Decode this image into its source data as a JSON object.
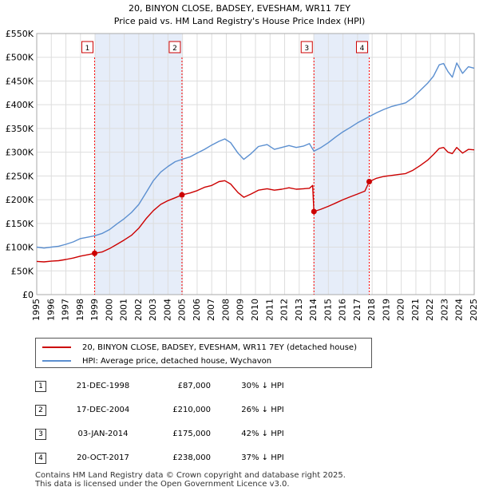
{
  "colors": {
    "property": "#cc0000",
    "hpi": "#5b8fd0",
    "shade": "#e6edf9",
    "grid": "#dddddd",
    "marker_line": "#ff0000"
  },
  "chart_data": {
    "type": "line",
    "title": "20, BINYON CLOSE, BADSEY, EVESHAM, WR11 7EY",
    "subtitle": "Price paid vs. HM Land Registry's House Price Index (HPI)",
    "xlim": [
      1995,
      2025
    ],
    "ylim": [
      0,
      550000
    ],
    "x_ticks": [
      1995,
      1996,
      1997,
      1998,
      1999,
      2000,
      2001,
      2002,
      2003,
      2004,
      2005,
      2006,
      2007,
      2008,
      2009,
      2010,
      2011,
      2012,
      2013,
      2014,
      2015,
      2016,
      2017,
      2018,
      2019,
      2020,
      2021,
      2022,
      2023,
      2024,
      2025
    ],
    "y_ticks": [
      {
        "value": 0,
        "label": "£0"
      },
      {
        "value": 50000,
        "label": "£50K"
      },
      {
        "value": 100000,
        "label": "£100K"
      },
      {
        "value": 150000,
        "label": "£150K"
      },
      {
        "value": 200000,
        "label": "£200K"
      },
      {
        "value": 250000,
        "label": "£250K"
      },
      {
        "value": 300000,
        "label": "£300K"
      },
      {
        "value": 350000,
        "label": "£350K"
      },
      {
        "value": 400000,
        "label": "£400K"
      },
      {
        "value": 450000,
        "label": "£450K"
      },
      {
        "value": 500000,
        "label": "£500K"
      },
      {
        "value": 550000,
        "label": "£550K"
      }
    ],
    "shaded_ranges": [
      [
        1998.97,
        2004.96
      ],
      [
        2014.01,
        2017.8
      ]
    ],
    "series": [
      {
        "name": "20, BINYON CLOSE, BADSEY, EVESHAM, WR11 7EY (detached house)",
        "color": "#cc0000",
        "points": [
          [
            1995.0,
            70000
          ],
          [
            1995.5,
            69000
          ],
          [
            1996.0,
            70500
          ],
          [
            1996.5,
            71500
          ],
          [
            1997.0,
            74000
          ],
          [
            1997.5,
            77000
          ],
          [
            1998.0,
            81000
          ],
          [
            1998.5,
            84000
          ],
          [
            1998.97,
            87000
          ],
          [
            1999.5,
            90000
          ],
          [
            2000.0,
            97000
          ],
          [
            2000.5,
            106000
          ],
          [
            2001.0,
            115000
          ],
          [
            2001.5,
            125000
          ],
          [
            2002.0,
            140000
          ],
          [
            2002.5,
            160000
          ],
          [
            2003.0,
            177000
          ],
          [
            2003.5,
            190000
          ],
          [
            2004.0,
            198000
          ],
          [
            2004.5,
            204000
          ],
          [
            2004.96,
            210000
          ],
          [
            2005.5,
            214000
          ],
          [
            2006.0,
            219000
          ],
          [
            2006.5,
            226000
          ],
          [
            2007.0,
            230000
          ],
          [
            2007.5,
            238000
          ],
          [
            2007.9,
            240000
          ],
          [
            2008.3,
            233000
          ],
          [
            2008.8,
            215000
          ],
          [
            2009.2,
            205000
          ],
          [
            2009.7,
            212000
          ],
          [
            2010.2,
            220000
          ],
          [
            2010.8,
            223000
          ],
          [
            2011.3,
            220000
          ],
          [
            2011.8,
            222000
          ],
          [
            2012.3,
            225000
          ],
          [
            2012.8,
            222000
          ],
          [
            2013.3,
            223000
          ],
          [
            2013.7,
            224000
          ],
          [
            2013.92,
            230000
          ],
          [
            2014.01,
            175000
          ],
          [
            2014.5,
            180000
          ],
          [
            2015.0,
            186000
          ],
          [
            2015.5,
            193000
          ],
          [
            2016.0,
            200000
          ],
          [
            2016.5,
            206000
          ],
          [
            2017.0,
            212000
          ],
          [
            2017.5,
            218000
          ],
          [
            2017.8,
            238000
          ],
          [
            2018.3,
            245000
          ],
          [
            2018.8,
            249000
          ],
          [
            2019.3,
            251000
          ],
          [
            2019.8,
            253000
          ],
          [
            2020.3,
            255000
          ],
          [
            2020.8,
            262000
          ],
          [
            2021.3,
            272000
          ],
          [
            2021.8,
            283000
          ],
          [
            2022.2,
            295000
          ],
          [
            2022.6,
            308000
          ],
          [
            2022.9,
            310000
          ],
          [
            2023.2,
            300000
          ],
          [
            2023.5,
            297000
          ],
          [
            2023.8,
            310000
          ],
          [
            2024.2,
            298000
          ],
          [
            2024.6,
            306000
          ],
          [
            2025.0,
            305000
          ]
        ]
      },
      {
        "name": "HPI: Average price, detached house, Wychavon",
        "color": "#5b8fd0",
        "points": [
          [
            1995.0,
            100000
          ],
          [
            1995.5,
            98000
          ],
          [
            1996.0,
            100000
          ],
          [
            1996.5,
            102000
          ],
          [
            1997.0,
            106000
          ],
          [
            1997.5,
            111000
          ],
          [
            1998.0,
            118000
          ],
          [
            1998.5,
            121000
          ],
          [
            1998.97,
            124000
          ],
          [
            1999.5,
            129000
          ],
          [
            2000.0,
            137000
          ],
          [
            2000.5,
            149000
          ],
          [
            2001.0,
            160000
          ],
          [
            2001.5,
            173000
          ],
          [
            2002.0,
            190000
          ],
          [
            2002.5,
            215000
          ],
          [
            2003.0,
            240000
          ],
          [
            2003.5,
            258000
          ],
          [
            2004.0,
            270000
          ],
          [
            2004.5,
            280000
          ],
          [
            2004.96,
            285000
          ],
          [
            2005.5,
            290000
          ],
          [
            2006.0,
            298000
          ],
          [
            2006.5,
            306000
          ],
          [
            2007.0,
            315000
          ],
          [
            2007.5,
            323000
          ],
          [
            2007.9,
            328000
          ],
          [
            2008.3,
            320000
          ],
          [
            2008.8,
            298000
          ],
          [
            2009.2,
            285000
          ],
          [
            2009.7,
            297000
          ],
          [
            2010.2,
            312000
          ],
          [
            2010.8,
            316000
          ],
          [
            2011.3,
            306000
          ],
          [
            2011.8,
            310000
          ],
          [
            2012.3,
            314000
          ],
          [
            2012.8,
            310000
          ],
          [
            2013.3,
            313000
          ],
          [
            2013.7,
            318000
          ],
          [
            2014.01,
            302000
          ],
          [
            2014.5,
            310000
          ],
          [
            2015.0,
            320000
          ],
          [
            2015.5,
            332000
          ],
          [
            2016.0,
            343000
          ],
          [
            2016.5,
            352000
          ],
          [
            2017.0,
            362000
          ],
          [
            2017.5,
            370000
          ],
          [
            2017.8,
            375000
          ],
          [
            2018.3,
            383000
          ],
          [
            2018.8,
            390000
          ],
          [
            2019.3,
            396000
          ],
          [
            2019.8,
            400000
          ],
          [
            2020.3,
            404000
          ],
          [
            2020.8,
            415000
          ],
          [
            2021.3,
            430000
          ],
          [
            2021.8,
            445000
          ],
          [
            2022.2,
            460000
          ],
          [
            2022.6,
            484000
          ],
          [
            2022.9,
            487000
          ],
          [
            2023.2,
            470000
          ],
          [
            2023.5,
            458000
          ],
          [
            2023.8,
            488000
          ],
          [
            2024.2,
            466000
          ],
          [
            2024.6,
            480000
          ],
          [
            2025.0,
            477000
          ]
        ]
      }
    ],
    "sales": [
      {
        "label": "1",
        "x": 1998.97,
        "price": 87000
      },
      {
        "label": "2",
        "x": 2004.96,
        "price": 210000
      },
      {
        "label": "3",
        "x": 2014.01,
        "price": 175000
      },
      {
        "label": "4",
        "x": 2017.8,
        "price": 238000
      }
    ]
  },
  "legend": {
    "property_label": "20, BINYON CLOSE, BADSEY, EVESHAM, WR11 7EY (detached house)",
    "hpi_label": "HPI: Average price, detached house, Wychavon"
  },
  "transactions": [
    {
      "num": "1",
      "date": "21-DEC-1998",
      "price": "£87,000",
      "hpi": "30% ↓ HPI"
    },
    {
      "num": "2",
      "date": "17-DEC-2004",
      "price": "£210,000",
      "hpi": "26% ↓ HPI"
    },
    {
      "num": "3",
      "date": "03-JAN-2014",
      "price": "£175,000",
      "hpi": "42% ↓ HPI"
    },
    {
      "num": "4",
      "date": "20-OCT-2017",
      "price": "£238,000",
      "hpi": "37% ↓ HPI"
    }
  ],
  "footer": {
    "line1": "Contains HM Land Registry data © Crown copyright and database right 2025.",
    "line2": "This data is licensed under the Open Government Licence v3.0."
  }
}
